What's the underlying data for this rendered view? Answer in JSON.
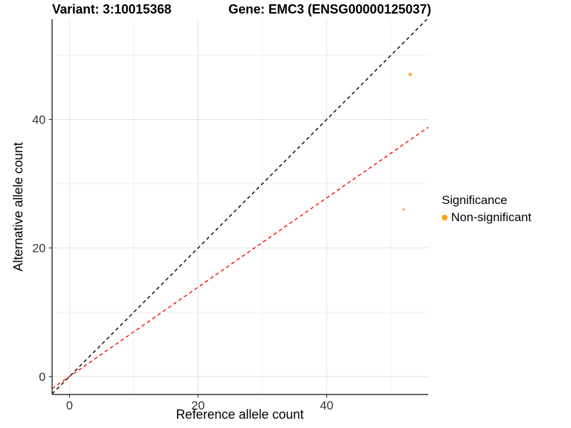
{
  "titles": {
    "variant": "Variant: 3:10015368",
    "gene": "Gene: EMC3 (ENSG00000125037)"
  },
  "chart_data": {
    "type": "scatter",
    "title": "Variant: 3:10015368   Gene: EMC3 (ENSG00000125037)",
    "xlabel": "Reference allele count",
    "ylabel": "Alternative allele count",
    "xlim": [
      -2.7,
      55.8
    ],
    "ylim": [
      -2.8,
      55.6
    ],
    "x_ticks": [
      0,
      20,
      40
    ],
    "y_ticks": [
      0,
      20,
      40
    ],
    "minor_grid_interval": 10,
    "grid": "on",
    "legend_position": "right",
    "points": [
      {
        "x": 53,
        "y": 47,
        "r": 2.2,
        "significance": "Non-significant"
      },
      {
        "x": 52,
        "y": 26,
        "r": 1.6,
        "significance": "Non-significant"
      }
    ],
    "ref_lines": [
      {
        "name": "identity-line",
        "slope": 1,
        "intercept": 0,
        "color": "#000000",
        "style": "dashed"
      },
      {
        "name": "allelic-ratio-line",
        "slope": 0.695,
        "intercept": 0,
        "color": "#ff0000",
        "style": "dashed"
      }
    ],
    "colors": {
      "point": "#FFA40E",
      "grid_major": "#e3e3e3",
      "grid_minor": "#f1f1f1",
      "axis_line": "#333333",
      "tick_text": "#333333"
    }
  },
  "legend": {
    "title": "Significance",
    "items": [
      {
        "label": "Non-significant",
        "color": "#FFA40E"
      }
    ]
  }
}
